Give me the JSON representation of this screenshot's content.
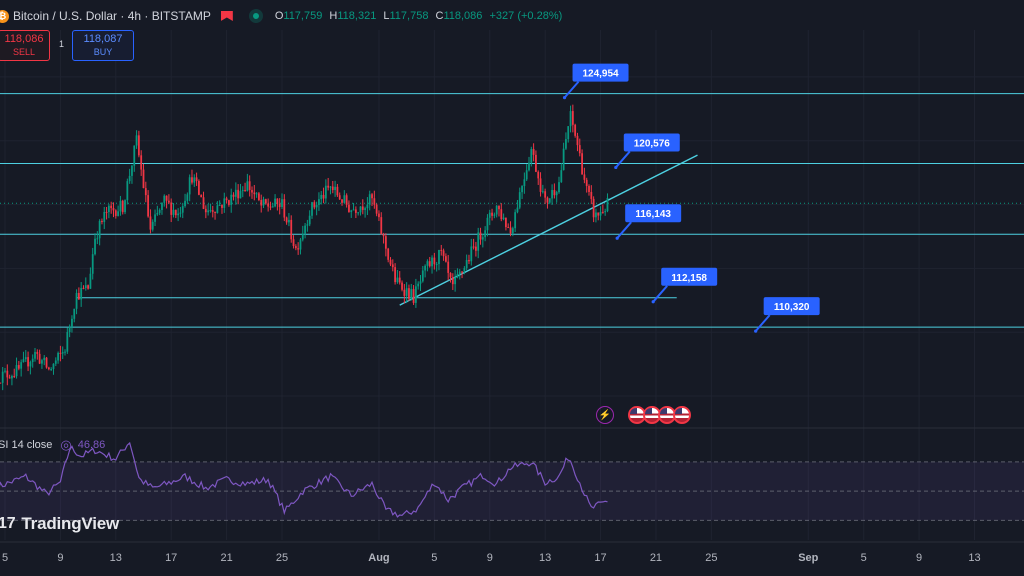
{
  "header": {
    "symbol": "Bitcoin / U.S. Dollar · 4h · BITSTAMP",
    "ohlc": [
      {
        "k": "O",
        "v": "117,759"
      },
      {
        "k": "H",
        "v": "118,321"
      },
      {
        "k": "L",
        "v": "117,758"
      },
      {
        "k": "C",
        "v": "118,086"
      },
      {
        "k": "",
        "v": "+327 (+0.28%)"
      }
    ]
  },
  "trade": {
    "sell_price": "118,086",
    "sell_label": "SELL",
    "buy_price": "118,087",
    "buy_label": "BUY",
    "spread": "1"
  },
  "rsi": {
    "label": "SI 14 close",
    "value": "46.86"
  },
  "brand": {
    "name": "TradingView",
    "mark": "17"
  },
  "colors": {
    "bg": "#161a25",
    "up": "#089981",
    "down": "#f23645",
    "line": "#4dd0e1",
    "callout": "#2962ff",
    "rsi": "#7e57c2"
  },
  "chart_data": {
    "type": "candlestick",
    "x_axis": {
      "ticks": [
        {
          "label": "5",
          "day": 0
        },
        {
          "label": "9",
          "day": 4
        },
        {
          "label": "13",
          "day": 8
        },
        {
          "label": "17",
          "day": 12
        },
        {
          "label": "21",
          "day": 16
        },
        {
          "label": "25",
          "day": 20
        },
        {
          "label": "Aug",
          "day": 27
        },
        {
          "label": "5",
          "day": 31
        },
        {
          "label": "9",
          "day": 35
        },
        {
          "label": "13",
          "day": 39
        },
        {
          "label": "17",
          "day": 43
        },
        {
          "label": "21",
          "day": 47
        },
        {
          "label": "25",
          "day": 51
        },
        {
          "label": "Sep",
          "day": 58
        },
        {
          "label": "5",
          "day": 62
        },
        {
          "label": "9",
          "day": 66
        },
        {
          "label": "13",
          "day": 70
        }
      ],
      "range": [
        0,
        72
      ]
    },
    "price_range": [
      105000,
      128000
    ],
    "close_path": [
      {
        "day": -0.5,
        "price": 107200
      },
      {
        "day": 1,
        "price": 107600
      },
      {
        "day": 2.2,
        "price": 108700
      },
      {
        "day": 3.2,
        "price": 107600
      },
      {
        "day": 4.3,
        "price": 108900
      },
      {
        "day": 5.1,
        "price": 112300
      },
      {
        "day": 6,
        "price": 112800
      },
      {
        "day": 6.5,
        "price": 116000
      },
      {
        "day": 7.3,
        "price": 117500
      },
      {
        "day": 8.5,
        "price": 117900
      },
      {
        "day": 9.5,
        "price": 122000
      },
      {
        "day": 10.5,
        "price": 116400
      },
      {
        "day": 11.5,
        "price": 118200
      },
      {
        "day": 12.5,
        "price": 117400
      },
      {
        "day": 13.5,
        "price": 119800
      },
      {
        "day": 14.5,
        "price": 117600
      },
      {
        "day": 16,
        "price": 118200
      },
      {
        "day": 17.5,
        "price": 119300
      },
      {
        "day": 18.5,
        "price": 117900
      },
      {
        "day": 20,
        "price": 118000
      },
      {
        "day": 21,
        "price": 115200
      },
      {
        "day": 22,
        "price": 117600
      },
      {
        "day": 23.5,
        "price": 119100
      },
      {
        "day": 25,
        "price": 117700
      },
      {
        "day": 26.5,
        "price": 118300
      },
      {
        "day": 27.5,
        "price": 115300
      },
      {
        "day": 28.2,
        "price": 113200
      },
      {
        "day": 29,
        "price": 112600
      },
      {
        "day": 29.5,
        "price": 112200
      },
      {
        "day": 30.5,
        "price": 114100
      },
      {
        "day": 31.5,
        "price": 114900
      },
      {
        "day": 32.3,
        "price": 112700
      },
      {
        "day": 33.5,
        "price": 114700
      },
      {
        "day": 34.5,
        "price": 116400
      },
      {
        "day": 35.5,
        "price": 117900
      },
      {
        "day": 36.5,
        "price": 116300
      },
      {
        "day": 37.3,
        "price": 119200
      },
      {
        "day": 38,
        "price": 121500
      },
      {
        "day": 39,
        "price": 118100
      },
      {
        "day": 40,
        "price": 119400
      },
      {
        "day": 40.8,
        "price": 123600
      },
      {
        "day": 41.3,
        "price": 121900
      },
      {
        "day": 42,
        "price": 118900
      },
      {
        "day": 42.6,
        "price": 117200
      },
      {
        "day": 43.2,
        "price": 117700
      },
      {
        "day": 43.6,
        "price": 118086
      }
    ],
    "rsi": {
      "levels": [
        70,
        50,
        30
      ],
      "range": [
        20,
        85
      ],
      "path": [
        {
          "day": -0.5,
          "value": 53
        },
        {
          "day": 1.5,
          "value": 60
        },
        {
          "day": 3,
          "value": 48
        },
        {
          "day": 4,
          "value": 56
        },
        {
          "day": 4.7,
          "value": 80
        },
        {
          "day": 5.5,
          "value": 74
        },
        {
          "day": 6.5,
          "value": 78
        },
        {
          "day": 8,
          "value": 72
        },
        {
          "day": 9,
          "value": 84
        },
        {
          "day": 9.7,
          "value": 58
        },
        {
          "day": 10.7,
          "value": 52
        },
        {
          "day": 12,
          "value": 56
        },
        {
          "day": 13,
          "value": 60
        },
        {
          "day": 14.5,
          "value": 52
        },
        {
          "day": 16,
          "value": 58
        },
        {
          "day": 17.5,
          "value": 55
        },
        {
          "day": 19,
          "value": 58
        },
        {
          "day": 20.2,
          "value": 36
        },
        {
          "day": 21.5,
          "value": 50
        },
        {
          "day": 23.5,
          "value": 60
        },
        {
          "day": 25,
          "value": 47
        },
        {
          "day": 26.5,
          "value": 55
        },
        {
          "day": 27.5,
          "value": 37
        },
        {
          "day": 28.7,
          "value": 33
        },
        {
          "day": 29.8,
          "value": 38
        },
        {
          "day": 31,
          "value": 56
        },
        {
          "day": 32,
          "value": 44
        },
        {
          "day": 33,
          "value": 52
        },
        {
          "day": 34.5,
          "value": 61
        },
        {
          "day": 35.5,
          "value": 55
        },
        {
          "day": 36.5,
          "value": 66
        },
        {
          "day": 38,
          "value": 70
        },
        {
          "day": 39,
          "value": 56
        },
        {
          "day": 40,
          "value": 60
        },
        {
          "day": 40.7,
          "value": 74
        },
        {
          "day": 41.5,
          "value": 56
        },
        {
          "day": 42.3,
          "value": 38
        },
        {
          "day": 43,
          "value": 41
        },
        {
          "day": 43.6,
          "value": 44
        }
      ]
    },
    "levels": [
      {
        "price": 124954,
        "label": "124,954",
        "extent": "full"
      },
      {
        "price": 120576,
        "label": "120,576",
        "extent": "full"
      },
      {
        "price": 116143,
        "label": "116,143",
        "extent": "full"
      },
      {
        "price": 112158,
        "label": "112,158",
        "extent": "partial",
        "from_day": 5.2,
        "to_day": 48.5
      },
      {
        "price": 110320,
        "label": "110,320",
        "extent": "full"
      }
    ],
    "current_price_line": 118086,
    "trendline": {
      "from": {
        "day": 28.5,
        "price": 111700
      },
      "to": {
        "day": 50,
        "price": 121100
      }
    },
    "callouts": [
      {
        "label": "124,954",
        "anchor_day": 40.4,
        "anchor_price": 124954
      },
      {
        "label": "120,576",
        "anchor_day": 44.1,
        "anchor_price": 120576
      },
      {
        "label": "116,143",
        "anchor_day": 44.2,
        "anchor_price": 116143
      },
      {
        "label": "112,158",
        "anchor_day": 46.8,
        "anchor_price": 112158
      },
      {
        "label": "110,320",
        "anchor_day": 54.2,
        "anchor_price": 110320
      }
    ]
  }
}
